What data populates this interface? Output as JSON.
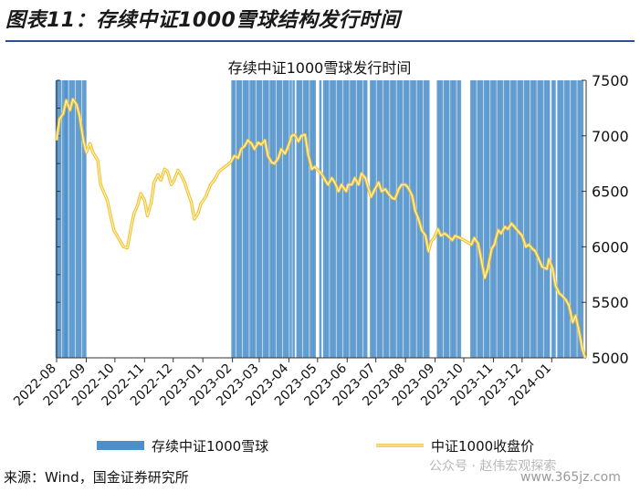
{
  "figure_title": "图表11：存续中证1000雪球结构发行时间",
  "source": "来源：Wind，国金证券研究所",
  "watermark": "公众号 · 赵伟宏观探索",
  "watermark_url": "www.365jz.com",
  "colors": {
    "bar": "#4c8fc9",
    "bar_light": "#a9cbe6",
    "line": "#f2c230",
    "line_inner": "#fff6cc",
    "title_rule": "#2f4f8f"
  },
  "chart_data": {
    "type": "bar+line",
    "title": "存续中证1000雪球发行时间",
    "x_ticks": [
      "2022-08",
      "2022-09",
      "2022-10",
      "2022-11",
      "2022-12",
      "2023-01",
      "2023-02",
      "2023-03",
      "2023-04",
      "2023-05",
      "2023-06",
      "2023-07",
      "2023-08",
      "2023-09",
      "2023-10",
      "2023-11",
      "2023-12",
      "2024-01"
    ],
    "x_range": [
      "2022-08-01",
      "2024-02-06"
    ],
    "y_right": {
      "min": 5000,
      "max": 7500,
      "ticks": [
        5000,
        5500,
        6000,
        6500,
        7000,
        7500
      ]
    },
    "grid": false,
    "legend_position": "bottom",
    "series": [
      {
        "name": "存续中证1000雪球",
        "type": "bar",
        "issue_dates": [
          "2022-08-01",
          "2022-08-03",
          "2022-08-05",
          "2022-08-08",
          "2022-08-10",
          "2022-08-11",
          "2022-08-12",
          "2022-08-15",
          "2022-08-17",
          "2022-08-19",
          "2022-08-22",
          "2022-08-24",
          "2022-08-26",
          "2022-08-29",
          "2022-08-31",
          "2023-02-01",
          "2023-02-03",
          "2023-02-06",
          "2023-02-08",
          "2023-02-10",
          "2023-02-13",
          "2023-02-15",
          "2023-02-17",
          "2023-02-20",
          "2023-02-22",
          "2023-02-24",
          "2023-02-27",
          "2023-03-01",
          "2023-03-03",
          "2023-03-06",
          "2023-03-08",
          "2023-03-10",
          "2023-03-13",
          "2023-03-15",
          "2023-03-17",
          "2023-03-20",
          "2023-03-22",
          "2023-03-24",
          "2023-03-27",
          "2023-03-29",
          "2023-03-31",
          "2023-04-03",
          "2023-04-06",
          "2023-04-10",
          "2023-04-12",
          "2023-04-14",
          "2023-04-17",
          "2023-04-19",
          "2023-04-21",
          "2023-04-24",
          "2023-04-26",
          "2023-04-28",
          "2023-05-04",
          "2023-05-08",
          "2023-05-10",
          "2023-05-12",
          "2023-05-15",
          "2023-05-17",
          "2023-05-19",
          "2023-05-22",
          "2023-05-24",
          "2023-05-26",
          "2023-05-29",
          "2023-05-31",
          "2023-06-02",
          "2023-06-05",
          "2023-06-07",
          "2023-06-09",
          "2023-06-12",
          "2023-06-14",
          "2023-06-16",
          "2023-06-19",
          "2023-06-21",
          "2023-06-26",
          "2023-06-28",
          "2023-06-30",
          "2023-07-03",
          "2023-07-05",
          "2023-07-07",
          "2023-07-10",
          "2023-07-12",
          "2023-07-14",
          "2023-07-17",
          "2023-07-19",
          "2023-07-21",
          "2023-07-24",
          "2023-07-26",
          "2023-07-28",
          "2023-07-31",
          "2023-08-02",
          "2023-08-04",
          "2023-08-07",
          "2023-08-09",
          "2023-08-11",
          "2023-08-14",
          "2023-08-16",
          "2023-08-18",
          "2023-08-21",
          "2023-08-23",
          "2023-08-25",
          "2023-09-04",
          "2023-09-06",
          "2023-09-08",
          "2023-09-11",
          "2023-09-13",
          "2023-09-15",
          "2023-09-18",
          "2023-09-20",
          "2023-09-22",
          "2023-09-25",
          "2023-09-27",
          "2023-10-09",
          "2023-10-11",
          "2023-10-13",
          "2023-10-16",
          "2023-10-18",
          "2023-10-20",
          "2023-10-23",
          "2023-10-25",
          "2023-10-27",
          "2023-10-30",
          "2023-11-01",
          "2023-11-03",
          "2023-11-06",
          "2023-11-08",
          "2023-11-10",
          "2023-11-13",
          "2023-11-15",
          "2023-11-17",
          "2023-11-20",
          "2023-11-22",
          "2023-11-24",
          "2023-11-27",
          "2023-11-29",
          "2023-12-01",
          "2023-12-04",
          "2023-12-06",
          "2023-12-08",
          "2023-12-11",
          "2023-12-13",
          "2023-12-15",
          "2023-12-18",
          "2023-12-20",
          "2023-12-22",
          "2023-12-25",
          "2023-12-27",
          "2023-12-29",
          "2024-01-02",
          "2024-01-04",
          "2024-01-08",
          "2024-01-10",
          "2024-01-12",
          "2024-01-15",
          "2024-01-17",
          "2024-01-19",
          "2024-01-22",
          "2024-01-24",
          "2024-01-26",
          "2024-01-29",
          "2024-01-31",
          "2024-02-02"
        ]
      },
      {
        "name": "中证1000收盘价",
        "type": "line",
        "points": [
          [
            "2022-08-01",
            6960
          ],
          [
            "2022-08-04",
            7150
          ],
          [
            "2022-08-08",
            7200
          ],
          [
            "2022-08-11",
            7320
          ],
          [
            "2022-08-15",
            7230
          ],
          [
            "2022-08-18",
            7330
          ],
          [
            "2022-08-22",
            7280
          ],
          [
            "2022-08-25",
            7180
          ],
          [
            "2022-08-29",
            6960
          ],
          [
            "2022-09-01",
            6850
          ],
          [
            "2022-09-05",
            6930
          ],
          [
            "2022-09-08",
            6850
          ],
          [
            "2022-09-13",
            6780
          ],
          [
            "2022-09-16",
            6560
          ],
          [
            "2022-09-20",
            6480
          ],
          [
            "2022-09-23",
            6420
          ],
          [
            "2022-09-27",
            6260
          ],
          [
            "2022-09-30",
            6150
          ],
          [
            "2022-10-10",
            6000
          ],
          [
            "2022-10-14",
            5990
          ],
          [
            "2022-10-18",
            6180
          ],
          [
            "2022-10-21",
            6300
          ],
          [
            "2022-10-25",
            6380
          ],
          [
            "2022-10-28",
            6480
          ],
          [
            "2022-11-01",
            6420
          ],
          [
            "2022-11-04",
            6280
          ],
          [
            "2022-11-08",
            6400
          ],
          [
            "2022-11-11",
            6580
          ],
          [
            "2022-11-15",
            6650
          ],
          [
            "2022-11-18",
            6600
          ],
          [
            "2022-11-22",
            6700
          ],
          [
            "2022-11-25",
            6680
          ],
          [
            "2022-11-29",
            6560
          ],
          [
            "2022-12-02",
            6600
          ],
          [
            "2022-12-06",
            6690
          ],
          [
            "2022-12-09",
            6650
          ],
          [
            "2022-12-13",
            6580
          ],
          [
            "2022-12-16",
            6500
          ],
          [
            "2022-12-20",
            6400
          ],
          [
            "2022-12-23",
            6250
          ],
          [
            "2022-12-27",
            6300
          ],
          [
            "2022-12-30",
            6390
          ],
          [
            "2023-01-04",
            6450
          ],
          [
            "2023-01-09",
            6560
          ],
          [
            "2023-01-13",
            6600
          ],
          [
            "2023-01-18",
            6680
          ],
          [
            "2023-01-30",
            6760
          ],
          [
            "2023-02-03",
            6820
          ],
          [
            "2023-02-07",
            6800
          ],
          [
            "2023-02-10",
            6880
          ],
          [
            "2023-02-14",
            6910
          ],
          [
            "2023-02-17",
            6960
          ],
          [
            "2023-02-21",
            6930
          ],
          [
            "2023-02-24",
            6880
          ],
          [
            "2023-02-28",
            6940
          ],
          [
            "2023-03-03",
            6920
          ],
          [
            "2023-03-07",
            6960
          ],
          [
            "2023-03-10",
            6820
          ],
          [
            "2023-03-14",
            6760
          ],
          [
            "2023-03-17",
            6750
          ],
          [
            "2023-03-21",
            6800
          ],
          [
            "2023-03-24",
            6880
          ],
          [
            "2023-03-28",
            6840
          ],
          [
            "2023-03-31",
            6900
          ],
          [
            "2023-04-04",
            7000
          ],
          [
            "2023-04-07",
            7010
          ],
          [
            "2023-04-11",
            6950
          ],
          [
            "2023-04-14",
            7000
          ],
          [
            "2023-04-18",
            7010
          ],
          [
            "2023-04-21",
            6840
          ],
          [
            "2023-04-25",
            6700
          ],
          [
            "2023-04-28",
            6720
          ],
          [
            "2023-05-05",
            6660
          ],
          [
            "2023-05-09",
            6600
          ],
          [
            "2023-05-12",
            6560
          ],
          [
            "2023-05-16",
            6620
          ],
          [
            "2023-05-19",
            6580
          ],
          [
            "2023-05-23",
            6500
          ],
          [
            "2023-05-26",
            6560
          ],
          [
            "2023-05-31",
            6500
          ],
          [
            "2023-06-02",
            6560
          ],
          [
            "2023-06-06",
            6560
          ],
          [
            "2023-06-09",
            6620
          ],
          [
            "2023-06-13",
            6560
          ],
          [
            "2023-06-16",
            6660
          ],
          [
            "2023-06-20",
            6620
          ],
          [
            "2023-06-26",
            6450
          ],
          [
            "2023-06-30",
            6520
          ],
          [
            "2023-07-04",
            6580
          ],
          [
            "2023-07-07",
            6500
          ],
          [
            "2023-07-11",
            6520
          ],
          [
            "2023-07-14",
            6480
          ],
          [
            "2023-07-18",
            6440
          ],
          [
            "2023-07-21",
            6430
          ],
          [
            "2023-07-25",
            6520
          ],
          [
            "2023-07-28",
            6560
          ],
          [
            "2023-08-01",
            6560
          ],
          [
            "2023-08-04",
            6530
          ],
          [
            "2023-08-08",
            6460
          ],
          [
            "2023-08-11",
            6330
          ],
          [
            "2023-08-15",
            6240
          ],
          [
            "2023-08-18",
            6150
          ],
          [
            "2023-08-22",
            6100
          ],
          [
            "2023-08-25",
            5960
          ],
          [
            "2023-08-28",
            6050
          ],
          [
            "2023-08-31",
            6080
          ],
          [
            "2023-09-04",
            6160
          ],
          [
            "2023-09-07",
            6100
          ],
          [
            "2023-09-11",
            6120
          ],
          [
            "2023-09-14",
            6100
          ],
          [
            "2023-09-19",
            6060
          ],
          [
            "2023-09-22",
            6100
          ],
          [
            "2023-09-27",
            6080
          ],
          [
            "2023-10-09",
            6020
          ],
          [
            "2023-10-12",
            6080
          ],
          [
            "2023-10-16",
            6030
          ],
          [
            "2023-10-19",
            5900
          ],
          [
            "2023-10-23",
            5720
          ],
          [
            "2023-10-26",
            5800
          ],
          [
            "2023-10-30",
            5980
          ],
          [
            "2023-11-02",
            6020
          ],
          [
            "2023-11-06",
            6150
          ],
          [
            "2023-11-09",
            6120
          ],
          [
            "2023-11-13",
            6180
          ],
          [
            "2023-11-16",
            6160
          ],
          [
            "2023-11-20",
            6210
          ],
          [
            "2023-11-23",
            6180
          ],
          [
            "2023-11-28",
            6130
          ],
          [
            "2023-12-01",
            6100
          ],
          [
            "2023-12-05",
            6000
          ],
          [
            "2023-12-08",
            6020
          ],
          [
            "2023-12-12",
            5980
          ],
          [
            "2023-12-15",
            5960
          ],
          [
            "2023-12-19",
            5880
          ],
          [
            "2023-12-22",
            5820
          ],
          [
            "2023-12-27",
            5800
          ],
          [
            "2023-12-29",
            5890
          ],
          [
            "2024-01-02",
            5800
          ],
          [
            "2024-01-05",
            5650
          ],
          [
            "2024-01-09",
            5580
          ],
          [
            "2024-01-12",
            5560
          ],
          [
            "2024-01-16",
            5520
          ],
          [
            "2024-01-19",
            5470
          ],
          [
            "2024-01-23",
            5320
          ],
          [
            "2024-01-26",
            5380
          ],
          [
            "2024-01-30",
            5220
          ],
          [
            "2024-02-02",
            5080
          ],
          [
            "2024-02-05",
            5000
          ]
        ]
      }
    ]
  }
}
